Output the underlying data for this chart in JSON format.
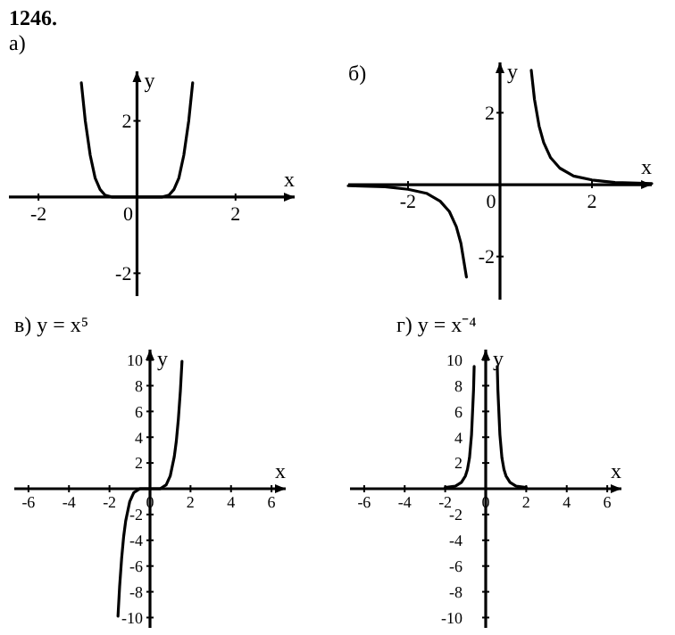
{
  "chart_data": [
    {
      "type": "line",
      "title": "а)",
      "annotations": [
        "1246."
      ],
      "xlabel": "x",
      "ylabel": "y",
      "xlim": [
        -2.6,
        3.2
      ],
      "ylim": [
        -2.6,
        3.3
      ],
      "xticks": [
        -2,
        0,
        2
      ],
      "yticks": [
        -2,
        2
      ],
      "grid": false,
      "marker": "none",
      "line_style": "solid",
      "series": [
        {
          "color": "#000000",
          "x": [
            -1.13,
            -1.05,
            -0.95,
            -0.85,
            -0.75,
            -0.65,
            -0.5,
            0,
            0.5,
            0.65,
            0.75,
            0.85,
            0.95,
            1.05,
            1.13
          ],
          "values": [
            3,
            2,
            1.1,
            0.5,
            0.2,
            0.05,
            0,
            0,
            0,
            0.05,
            0.2,
            0.5,
            1.1,
            2,
            3
          ]
        }
      ]
    },
    {
      "type": "line",
      "title": "б)",
      "xlabel": "x",
      "ylabel": "y",
      "xlim": [
        -3.3,
        3.3
      ],
      "ylim": [
        -3.2,
        3.4
      ],
      "xticks": [
        -2,
        0,
        2
      ],
      "yticks": [
        -2,
        2
      ],
      "grid": false,
      "marker": "none",
      "line_style": "solid",
      "series": [
        {
          "color": "#000000",
          "x": [
            -3.3,
            -3,
            -2.5,
            -2,
            -1.6,
            -1.3,
            -1.1,
            -0.95,
            -0.85,
            -0.73,
            0,
            0.68,
            0.75,
            0.85,
            0.95,
            1.1,
            1.3,
            1.6,
            2,
            2.5,
            3,
            3.3
          ],
          "values": [
            -0.03,
            -0.04,
            -0.06,
            -0.13,
            -0.24,
            -0.46,
            -0.75,
            -1.17,
            -1.63,
            -2.57,
            null,
            3.18,
            2.37,
            1.63,
            1.17,
            0.75,
            0.46,
            0.24,
            0.13,
            0.06,
            0.04,
            0.03
          ]
        }
      ]
    },
    {
      "type": "line",
      "title": "в) y = x⁵",
      "xlabel": "x",
      "ylabel": "y",
      "xlim": [
        -6.7,
        6.7
      ],
      "ylim": [
        -10.8,
        10.8
      ],
      "xticks": [
        -6,
        -4,
        -2,
        0,
        2,
        4,
        6
      ],
      "yticks": [
        -10,
        -8,
        -6,
        -4,
        -2,
        2,
        4,
        6,
        8,
        10
      ],
      "grid": false,
      "marker": "none",
      "line_style": "solid",
      "series": [
        {
          "color": "#000000",
          "x": [
            -1.58,
            -1.5,
            -1.4,
            -1.3,
            -1.2,
            -1,
            -0.8,
            -0.5,
            0,
            0.5,
            0.8,
            1,
            1.2,
            1.3,
            1.4,
            1.5,
            1.58
          ],
          "values": [
            -9.9,
            -7.6,
            -5.4,
            -3.7,
            -2.5,
            -1,
            -0.3,
            0,
            0,
            0,
            0.3,
            1,
            2.5,
            3.7,
            5.4,
            7.6,
            9.9
          ]
        }
      ]
    },
    {
      "type": "line",
      "title": "г) y = x⁻⁴",
      "xlabel": "x",
      "ylabel": "y",
      "xlim": [
        -6.7,
        6.7
      ],
      "ylim": [
        -10.8,
        10.8
      ],
      "xticks": [
        -6,
        -4,
        -2,
        0,
        2,
        4,
        6
      ],
      "yticks": [
        -10,
        -8,
        -6,
        -4,
        -2,
        2,
        4,
        6,
        8,
        10
      ],
      "grid": false,
      "marker": "none",
      "line_style": "solid",
      "series": [
        {
          "color": "#000000",
          "x": [
            -2,
            -1.5,
            -1.2,
            -1,
            -0.9,
            -0.8,
            -0.7,
            -0.6,
            -0.57,
            0,
            0.57,
            0.6,
            0.7,
            0.8,
            0.9,
            1,
            1.2,
            1.5,
            2
          ],
          "values": [
            0.1,
            0.2,
            0.5,
            1,
            1.5,
            2.4,
            4.2,
            7.7,
            9.5,
            null,
            9.5,
            7.7,
            4.2,
            2.4,
            1.5,
            1,
            0.5,
            0.2,
            0.1
          ]
        }
      ]
    }
  ]
}
